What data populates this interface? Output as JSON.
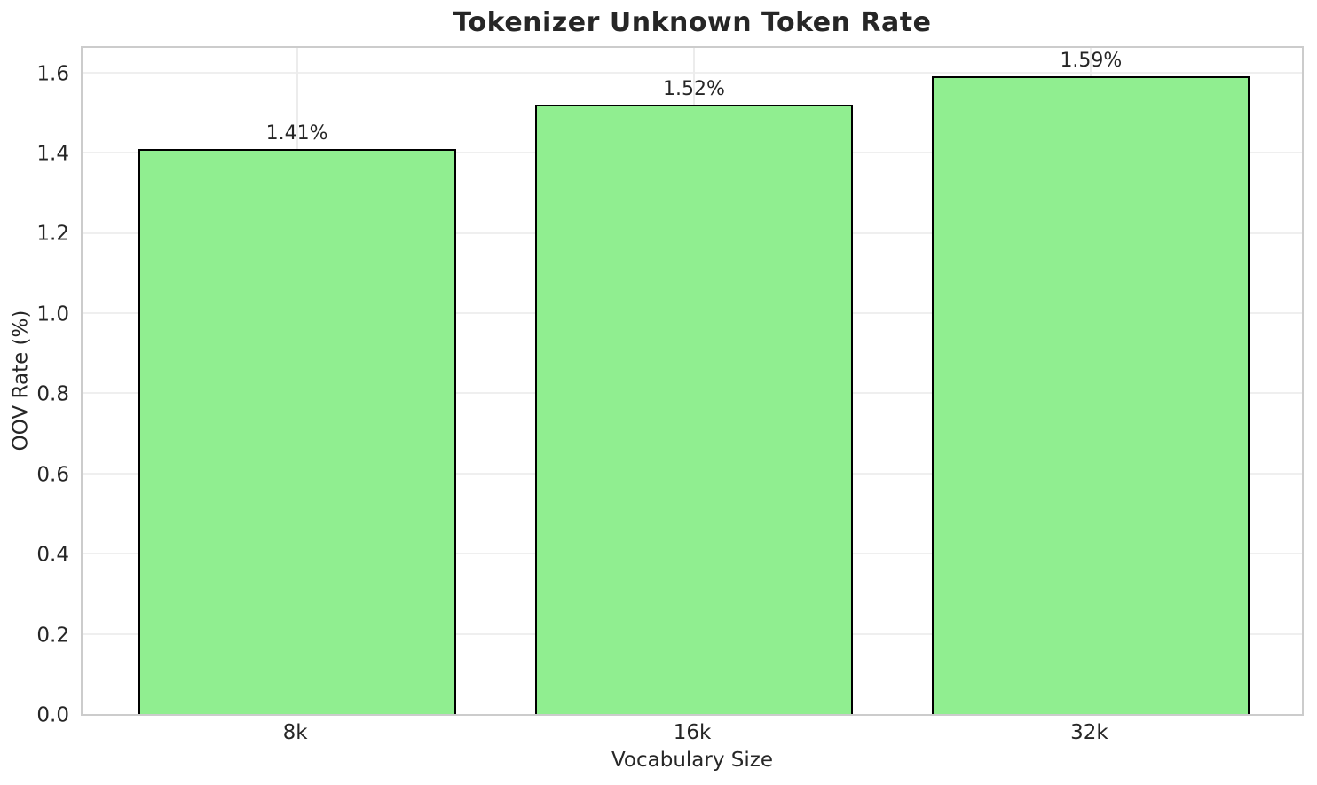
{
  "chart_data": {
    "type": "bar",
    "title": "Tokenizer Unknown Token Rate",
    "xlabel": "Vocabulary Size",
    "ylabel": "OOV Rate (%)",
    "categories": [
      "8k",
      "16k",
      "32k"
    ],
    "values": [
      1.41,
      1.52,
      1.59
    ],
    "bar_labels": [
      "1.41%",
      "1.52%",
      "1.59%"
    ],
    "ylim": [
      0,
      1.67
    ],
    "yticks": [
      0.0,
      0.2,
      0.4,
      0.6,
      0.8,
      1.0,
      1.2,
      1.4,
      1.6
    ],
    "ytick_labels": [
      "0.0",
      "0.2",
      "0.4",
      "0.6",
      "0.8",
      "1.0",
      "1.2",
      "1.4",
      "1.6"
    ],
    "bar_width_ratio": 0.8,
    "grid": true,
    "legend": null,
    "colors": {
      "bar_fill": "#90EE90",
      "bar_edge": "#000000",
      "grid_line": "#ececec",
      "frame": "#cccccc",
      "text": "#262626",
      "background": "#ffffff"
    }
  }
}
